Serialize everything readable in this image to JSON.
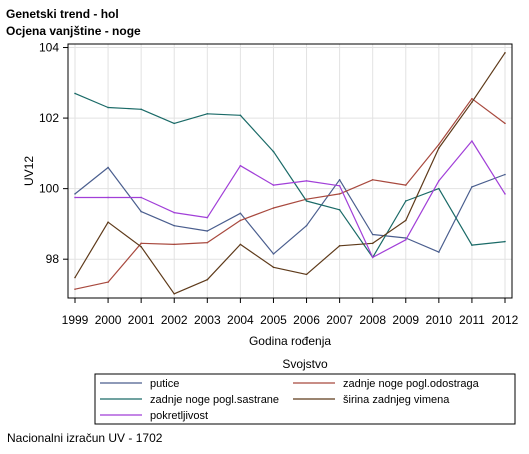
{
  "footnote": "Nacionalni izračun UV - 1702",
  "chart_data": {
    "type": "line",
    "title": "Genetski trend - hol",
    "subtitle": "Ocjena vanjštine - noge",
    "xlabel": "Godina rođenja",
    "ylabel": "UV12",
    "x": [
      1999,
      2000,
      2001,
      2002,
      2003,
      2004,
      2005,
      2006,
      2007,
      2008,
      2009,
      2010,
      2011,
      2012
    ],
    "xlim": [
      1999,
      2012
    ],
    "ylim": [
      96.9,
      104.1
    ],
    "yticks": [
      98,
      100,
      102,
      104
    ],
    "grid": true,
    "legend": {
      "title": "Svojstvo",
      "position": "bottom"
    },
    "series": [
      {
        "name": "putice",
        "color": "#4a5e8e",
        "values": [
          99.85,
          100.6,
          99.35,
          98.95,
          98.8,
          99.3,
          98.15,
          98.95,
          100.25,
          98.7,
          98.6,
          98.2,
          100.05,
          100.4
        ]
      },
      {
        "name": "zadnje noge pogl.odostraga",
        "color": "#a8493e",
        "values": [
          97.15,
          97.35,
          98.45,
          98.42,
          98.47,
          99.1,
          99.45,
          99.7,
          99.85,
          100.25,
          100.1,
          101.25,
          102.55,
          101.85
        ]
      },
      {
        "name": "zadnje noge pogl.sastrane",
        "color": "#1a6a67",
        "values": [
          102.7,
          102.3,
          102.25,
          101.85,
          102.12,
          102.08,
          101.05,
          99.65,
          99.4,
          98.05,
          99.65,
          100.0,
          98.4,
          98.5
        ]
      },
      {
        "name": "širina zadnjeg vimena",
        "color": "#5e3a1a",
        "values": [
          97.48,
          99.05,
          98.35,
          97.02,
          97.42,
          98.42,
          97.77,
          97.57,
          98.38,
          98.45,
          99.1,
          101.15,
          102.45,
          103.85
        ]
      },
      {
        "name": "pokretljivost",
        "color": "#a13fd8",
        "values": [
          99.75,
          99.75,
          99.75,
          99.32,
          99.18,
          100.65,
          100.1,
          100.22,
          100.08,
          98.05,
          98.55,
          100.22,
          101.35,
          99.85
        ]
      }
    ]
  }
}
